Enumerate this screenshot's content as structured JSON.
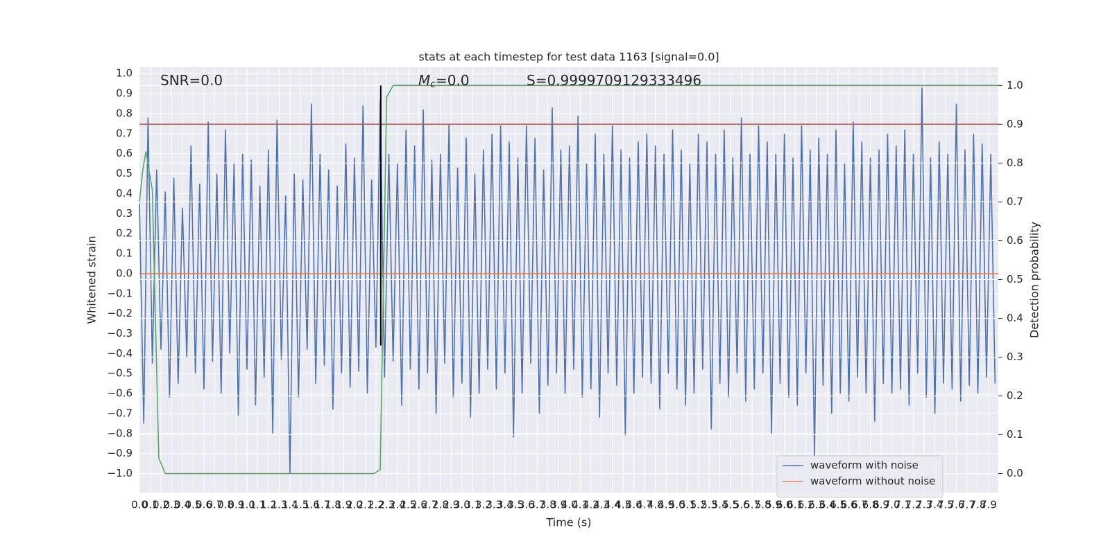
{
  "chart_data": {
    "type": "line",
    "title": "stats at each timestep for test data 1163 [signal=0.0]",
    "xlabel": "Time (s)",
    "ylabel": "Whitened strain",
    "y2label": "Detection probability",
    "grid": true,
    "legend": "lower right",
    "xlim": [
      0,
      7.99
    ],
    "ylim": [
      -1.095,
      1.032
    ],
    "y2lim": [
      -0.049,
      1.047
    ],
    "xticks": [
      {
        "value": 0,
        "label": "0.0"
      },
      0.1,
      0.2,
      0.3,
      0.4,
      0.5,
      0.6,
      0.7,
      0.8,
      0.9,
      {
        "value": 1,
        "label": "1.0"
      },
      1.1,
      1.2,
      1.3,
      1.4,
      1.5,
      1.6,
      1.7,
      1.8,
      1.9,
      {
        "value": 2,
        "label": "2.0"
      },
      2.1,
      2.2,
      2.3,
      2.4,
      2.5,
      2.6,
      2.7,
      2.8,
      2.9,
      {
        "value": 3,
        "label": "3.0"
      },
      3.1,
      3.2,
      3.3,
      3.4,
      3.5,
      3.6,
      3.7,
      3.8,
      3.9,
      {
        "value": 4,
        "label": "4.0"
      },
      4.1,
      4.2,
      4.3,
      4.4,
      4.5,
      4.6,
      4.7,
      4.8,
      4.9,
      {
        "value": 5,
        "label": "5.0"
      },
      5.1,
      5.2,
      5.3,
      5.4,
      5.5,
      5.6,
      5.7,
      5.8,
      5.9,
      {
        "value": 6,
        "label": "6.0"
      },
      6.1,
      6.2,
      6.3,
      6.4,
      6.5,
      6.6,
      6.7,
      6.8,
      6.9,
      {
        "value": 7,
        "label": "7.0"
      },
      7.1,
      7.2,
      7.3,
      7.4,
      7.5,
      7.6,
      7.7,
      7.8,
      7.9
    ],
    "yticks": [
      {
        "value": -1,
        "label": "−1.0"
      },
      {
        "value": -0.9,
        "label": "−0.9"
      },
      {
        "value": -0.8,
        "label": "−0.8"
      },
      {
        "value": -0.7,
        "label": "−0.7"
      },
      {
        "value": -0.6,
        "label": "−0.6"
      },
      {
        "value": -0.5,
        "label": "−0.5"
      },
      {
        "value": -0.4,
        "label": "−0.4"
      },
      {
        "value": -0.3,
        "label": "−0.3"
      },
      {
        "value": -0.2,
        "label": "−0.2"
      },
      {
        "value": -0.1,
        "label": "−0.1"
      },
      {
        "value": 0,
        "label": "0.0"
      },
      0.1,
      0.2,
      0.3,
      0.4,
      0.5,
      0.6,
      0.7,
      0.8,
      0.9,
      {
        "value": 1,
        "label": "1.0"
      }
    ],
    "y2ticks": [
      {
        "value": 0,
        "label": "0.0"
      },
      0.1,
      0.2,
      0.3,
      0.4,
      0.5,
      0.6,
      0.7,
      0.8,
      0.9,
      {
        "value": 1,
        "label": "1.0"
      }
    ],
    "annotations": [
      {
        "text": "SNR=0.0"
      },
      {
        "symbol": "M",
        "subscript": "c",
        "text": "=0.0"
      },
      {
        "text": "S=0.9999709129333496"
      }
    ],
    "hlines": [
      {
        "value": 0.9,
        "axis": "y2",
        "color": "#c44e52"
      }
    ],
    "vlines": [
      {
        "value": 2.245,
        "ymin": 0.33,
        "ymax": 1.0,
        "axis": "y2",
        "color": "#000000"
      }
    ],
    "series": [
      {
        "name": "waveform with noise",
        "color": "#4c72b0",
        "x": [
          0,
          0.04,
          0.08,
          0.12,
          0.16,
          0.2,
          0.24,
          0.28,
          0.32,
          0.36,
          0.4,
          0.44,
          0.48,
          0.52,
          0.56,
          0.6,
          0.64,
          0.68,
          0.72,
          0.76,
          0.8,
          0.84,
          0.88,
          0.92,
          0.96,
          1,
          1.04,
          1.08,
          1.12,
          1.16,
          1.2,
          1.24,
          1.28,
          1.32,
          1.36,
          1.4,
          1.44,
          1.48,
          1.52,
          1.56,
          1.6,
          1.64,
          1.68,
          1.72,
          1.76,
          1.8,
          1.84,
          1.88,
          1.92,
          1.96,
          2,
          2.04,
          2.08,
          2.12,
          2.16,
          2.2,
          2.24,
          2.28,
          2.32,
          2.36,
          2.4,
          2.44,
          2.48,
          2.52,
          2.56,
          2.6,
          2.64,
          2.68,
          2.72,
          2.76,
          2.8,
          2.84,
          2.88,
          2.92,
          2.96,
          3,
          3.04,
          3.08,
          3.12,
          3.16,
          3.2,
          3.24,
          3.28,
          3.32,
          3.36,
          3.4,
          3.44,
          3.48,
          3.52,
          3.56,
          3.6,
          3.64,
          3.68,
          3.72,
          3.76,
          3.8,
          3.84,
          3.88,
          3.92,
          3.96,
          4,
          4.04,
          4.08,
          4.12,
          4.16,
          4.2,
          4.24,
          4.28,
          4.32,
          4.36,
          4.4,
          4.44,
          4.48,
          4.52,
          4.56,
          4.6,
          4.64,
          4.68,
          4.72,
          4.76,
          4.8,
          4.84,
          4.88,
          4.92,
          4.96,
          5,
          5.04,
          5.08,
          5.12,
          5.16,
          5.2,
          5.24,
          5.28,
          5.32,
          5.36,
          5.4,
          5.44,
          5.48,
          5.52,
          5.56,
          5.6,
          5.64,
          5.68,
          5.72,
          5.76,
          5.8,
          5.84,
          5.88,
          5.92,
          5.96,
          6,
          6.04,
          6.08,
          6.12,
          6.16,
          6.2,
          6.24,
          6.28,
          6.32,
          6.36,
          6.4,
          6.44,
          6.48,
          6.52,
          6.56,
          6.6,
          6.64,
          6.68,
          6.72,
          6.76,
          6.8,
          6.84,
          6.88,
          6.92,
          6.96,
          7,
          7.04,
          7.08,
          7.12,
          7.16,
          7.2,
          7.24,
          7.28,
          7.32,
          7.36,
          7.4,
          7.44,
          7.48,
          7.52,
          7.56,
          7.6,
          7.64,
          7.68,
          7.72,
          7.76,
          7.8,
          7.84,
          7.88,
          7.92,
          7.96
        ],
        "values": [
          0.35,
          -0.75,
          0.78,
          -0.45,
          0.52,
          -0.38,
          0.41,
          -0.62,
          0.48,
          -0.55,
          0.33,
          -0.42,
          0.64,
          -0.5,
          0.45,
          -0.58,
          0.76,
          -0.44,
          0.5,
          -0.6,
          0.72,
          -0.4,
          0.55,
          -0.71,
          0.6,
          -0.48,
          0.57,
          -0.66,
          0.44,
          -0.52,
          0.62,
          -0.8,
          0.77,
          -0.43,
          0.39,
          -1.0,
          0.5,
          -0.62,
          0.47,
          -0.38,
          0.85,
          -0.55,
          0.6,
          -0.46,
          0.52,
          -0.68,
          0.44,
          -0.5,
          0.65,
          -0.57,
          0.58,
          -0.49,
          0.84,
          -0.6,
          0.47,
          -0.37,
          0.87,
          -0.52,
          0.6,
          -0.44,
          0.55,
          -0.66,
          0.72,
          -0.48,
          0.64,
          -0.58,
          0.82,
          -0.5,
          0.57,
          -0.7,
          0.6,
          -0.45,
          0.75,
          -0.62,
          0.53,
          -0.55,
          0.68,
          -0.72,
          0.5,
          -0.6,
          0.62,
          -0.48,
          0.7,
          -0.58,
          0.74,
          -0.5,
          0.66,
          -0.82,
          0.58,
          -0.6,
          0.74,
          -0.45,
          0.68,
          -0.7,
          0.52,
          -0.56,
          0.83,
          -0.5,
          0.62,
          -0.6,
          0.64,
          -0.48,
          0.79,
          -0.62,
          0.55,
          -0.58,
          0.7,
          -0.72,
          0.6,
          -0.5,
          0.74,
          -0.56,
          0.62,
          -0.81,
          0.58,
          -0.6,
          0.66,
          -0.52,
          0.7,
          -0.55,
          0.64,
          -0.68,
          0.6,
          -0.5,
          0.72,
          -0.58,
          0.62,
          -0.66,
          0.55,
          -0.6,
          0.7,
          -0.48,
          0.66,
          -0.78,
          0.6,
          -0.55,
          0.72,
          -0.62,
          0.58,
          -0.5,
          0.78,
          -0.64,
          0.6,
          -0.58,
          0.74,
          -0.5,
          0.66,
          -0.8,
          0.6,
          -0.55,
          0.7,
          -0.62,
          0.58,
          -0.66,
          0.74,
          -0.5,
          0.62,
          -0.92,
          0.68,
          -0.56,
          0.6,
          -0.7,
          0.72,
          -0.6,
          0.55,
          -0.64,
          0.76,
          -0.52,
          0.66,
          -0.6,
          0.58,
          -0.74,
          0.62,
          -0.55,
          0.7,
          -0.6,
          0.64,
          -0.58,
          0.72,
          -0.66,
          0.6,
          -0.5,
          0.93,
          -0.62,
          0.58,
          -0.7,
          0.66,
          -0.55,
          0.6,
          -0.58,
          0.85,
          -0.64,
          0.62,
          -0.56,
          0.7,
          -0.6,
          0.65,
          -0.52,
          0.6,
          -0.55
        ]
      },
      {
        "name": "waveform without noise",
        "color": "#dd8452",
        "x": [
          0,
          7.99
        ],
        "values": [
          0,
          0
        ]
      },
      {
        "color": "#55a868",
        "axis": "y2",
        "x": [
          0,
          0.03,
          0.06,
          0.12,
          0.18,
          0.24,
          2.18,
          2.24,
          2.3,
          2.36,
          7.99
        ],
        "values": [
          0.7,
          0.78,
          0.83,
          0.73,
          0.04,
          0.0,
          0.0,
          0.01,
          0.97,
          1.0,
          1.0
        ]
      }
    ]
  }
}
